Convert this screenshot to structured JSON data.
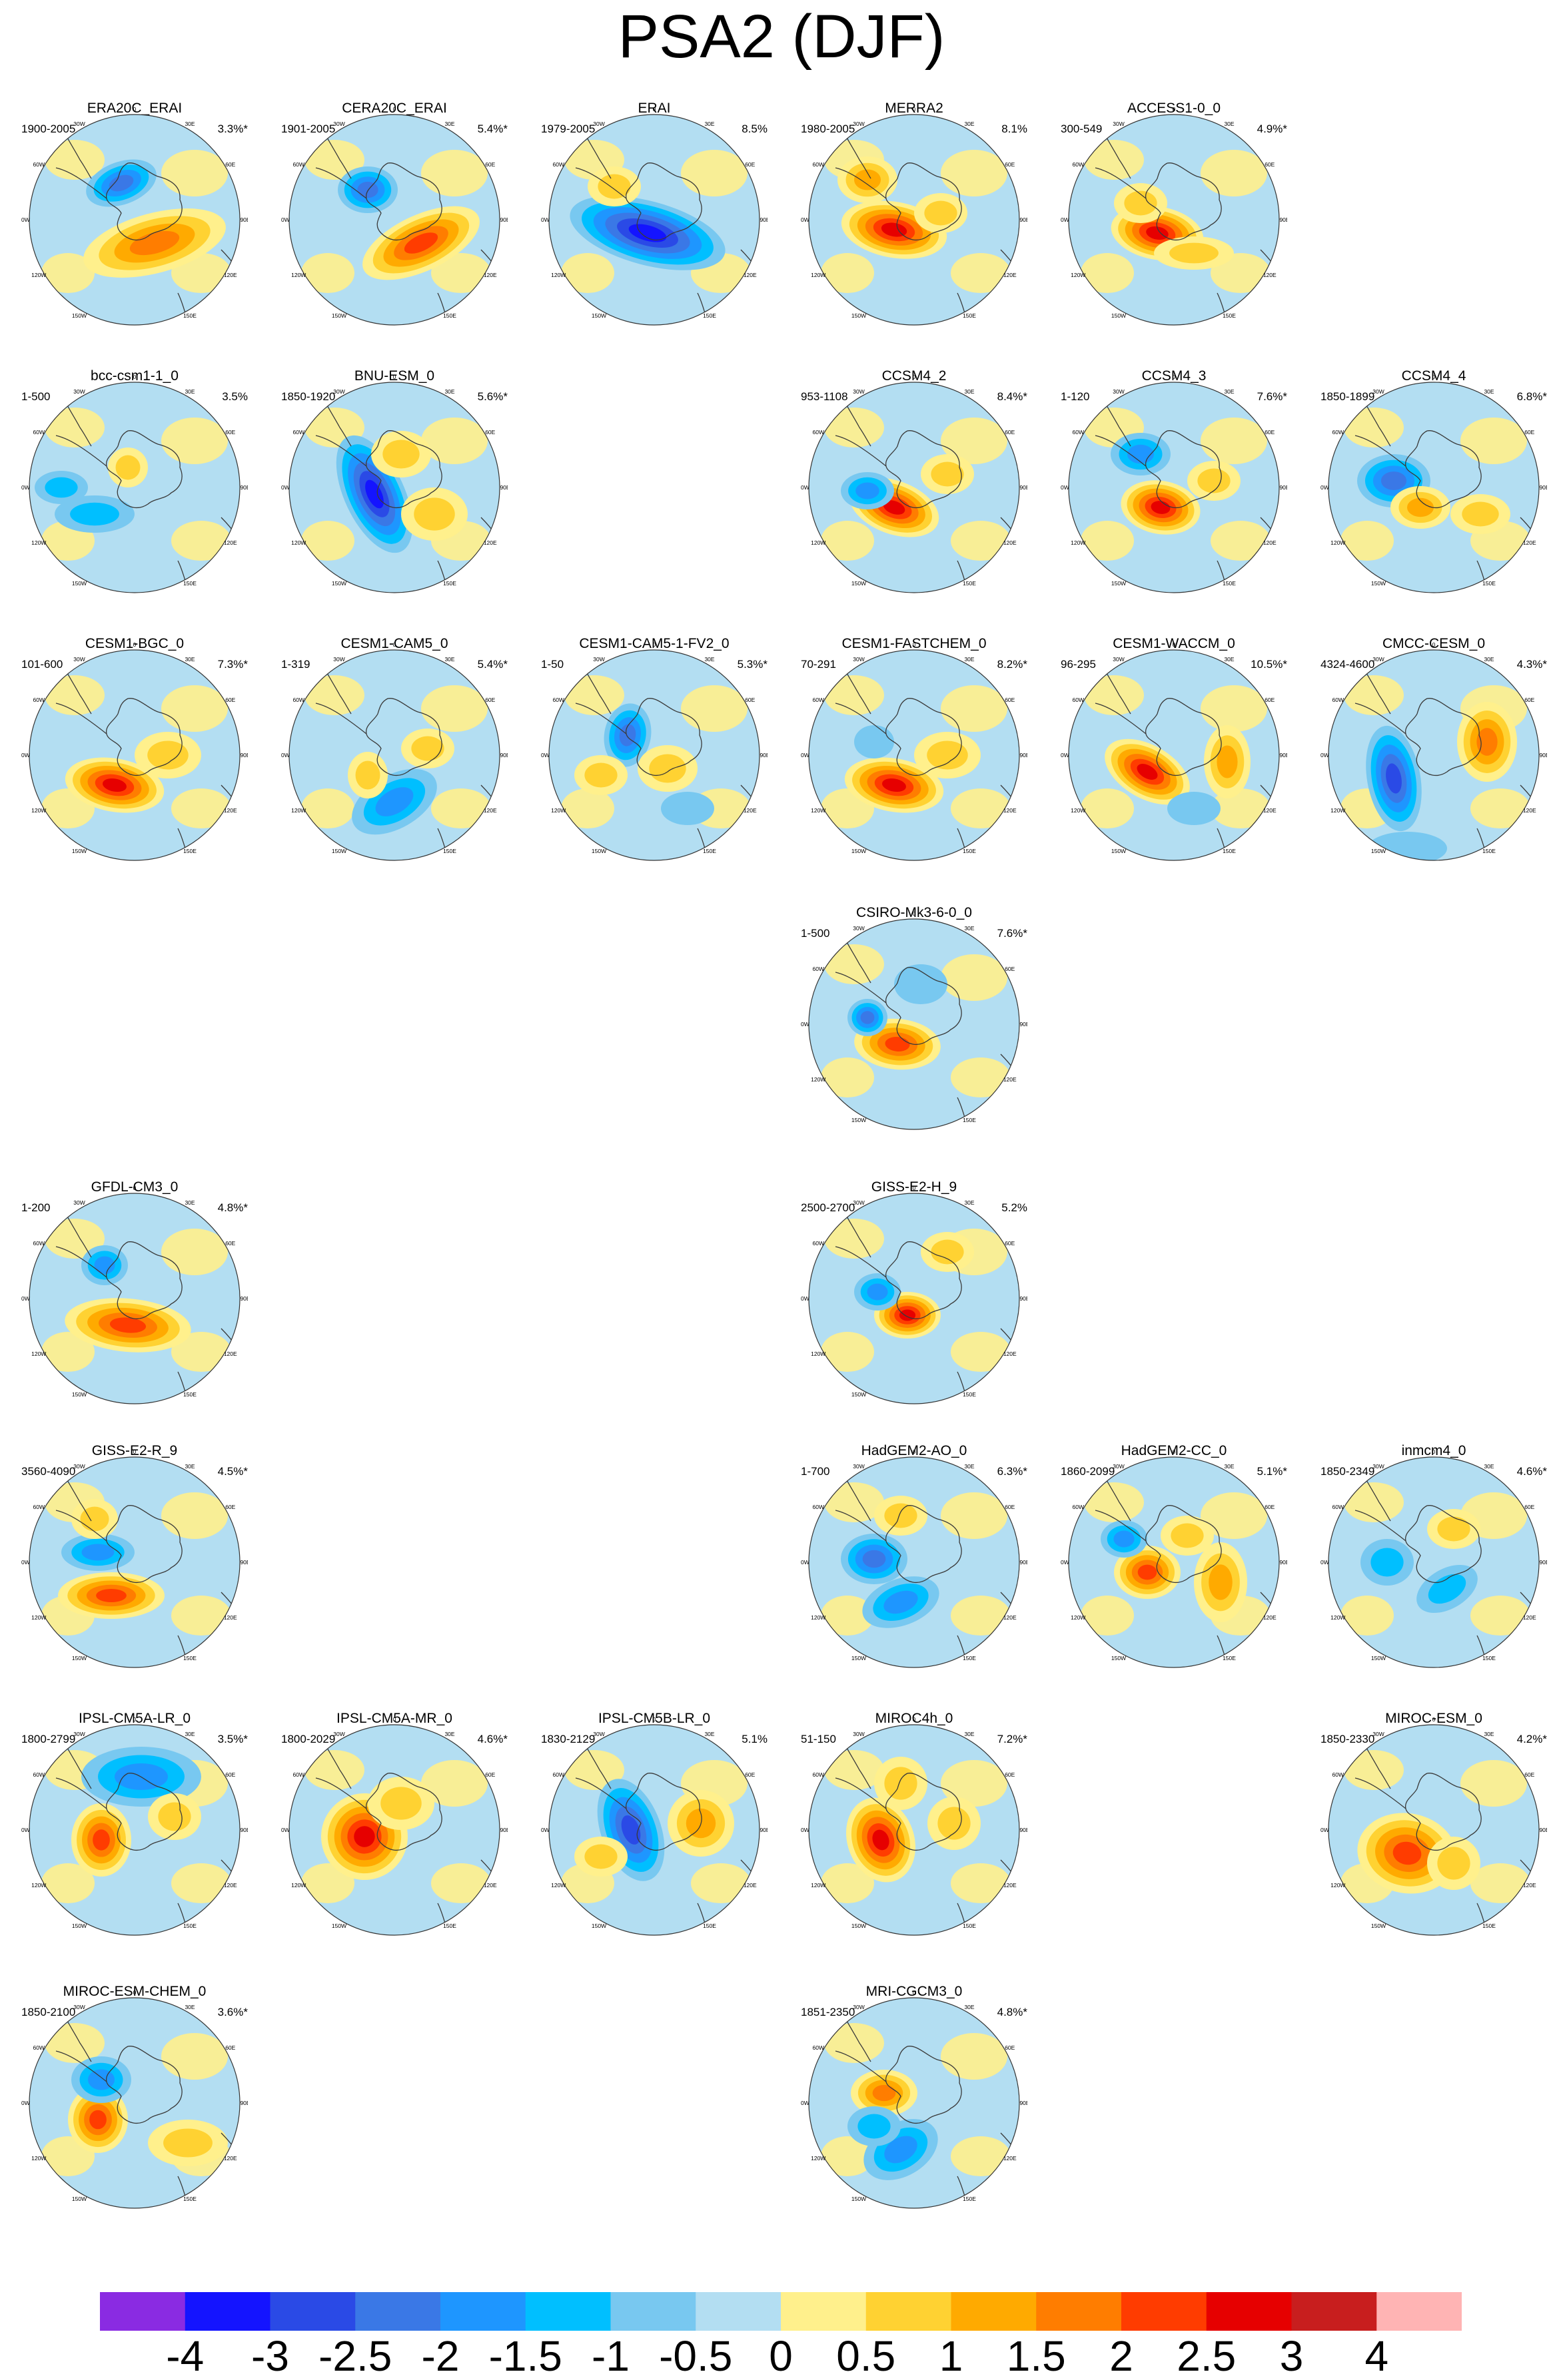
{
  "title": "PSA2 (DJF)",
  "colors": {
    "background": "#ffffff",
    "ocean_base": "#b3def2",
    "coastline": "#3a3a3a"
  },
  "longitude_labels": [
    "0",
    "30E",
    "60E",
    "90E",
    "120E",
    "150E",
    "180",
    "150W",
    "120W",
    "90W",
    "60W",
    "30W"
  ],
  "panels": [
    {
      "name": "ERA20C_ERAI",
      "years": "1900-2005",
      "pct": "3.3%*"
    },
    {
      "name": "CERA20C_ERAI",
      "years": "1901-2005",
      "pct": "5.4%*"
    },
    {
      "name": "ERAI",
      "years": "1979-2005",
      "pct": "8.5%"
    },
    {
      "name": "MERRA2",
      "years": "1980-2005",
      "pct": "8.1%"
    },
    {
      "name": "ACCESS1-0_0",
      "years": "300-549",
      "pct": "4.9%*"
    },
    {
      "name": "bcc-csm1-1_0",
      "years": "1-500",
      "pct": "3.5%"
    },
    {
      "name": "BNU-ESM_0",
      "years": "1850-1920",
      "pct": "5.6%*"
    },
    {
      "name": "CCSM4_2",
      "years": "953-1108",
      "pct": "8.4%*"
    },
    {
      "name": "CCSM4_3",
      "years": "1-120",
      "pct": "7.6%*"
    },
    {
      "name": "CCSM4_4",
      "years": "1850-1899",
      "pct": "6.8%*"
    },
    {
      "name": "CESM1-BGC_0",
      "years": "101-600",
      "pct": "7.3%*"
    },
    {
      "name": "CESM1-CAM5_0",
      "years": "1-319",
      "pct": "5.4%*"
    },
    {
      "name": "CESM1-CAM5-1-FV2_0",
      "years": "1-50",
      "pct": "5.3%*"
    },
    {
      "name": "CESM1-FASTCHEM_0",
      "years": "70-291",
      "pct": "8.2%*"
    },
    {
      "name": "CESM1-WACCM_0",
      "years": "96-295",
      "pct": "10.5%*"
    },
    {
      "name": "CMCC-CESM_0",
      "years": "4324-4600",
      "pct": "4.3%*"
    },
    {
      "name": "CSIRO-Mk3-6-0_0",
      "years": "1-500",
      "pct": "7.6%*"
    },
    {
      "name": "GFDL-CM3_0",
      "years": "1-200",
      "pct": "4.8%*"
    },
    {
      "name": "GISS-E2-H_9",
      "years": "2500-2700",
      "pct": "5.2%"
    },
    {
      "name": "GISS-E2-R_9",
      "years": "3560-4090",
      "pct": "4.5%*"
    },
    {
      "name": "HadGEM2-AO_0",
      "years": "1-700",
      "pct": "6.3%*"
    },
    {
      "name": "HadGEM2-CC_0",
      "years": "1860-2099",
      "pct": "5.1%*"
    },
    {
      "name": "inmcm4_0",
      "years": "1850-2349",
      "pct": "4.6%*"
    },
    {
      "name": "IPSL-CM5A-LR_0",
      "years": "1800-2799",
      "pct": "3.5%*"
    },
    {
      "name": "IPSL-CM5A-MR_0",
      "years": "1800-2029",
      "pct": "4.6%*"
    },
    {
      "name": "IPSL-CM5B-LR_0",
      "years": "1830-2129",
      "pct": "5.1%"
    },
    {
      "name": "MIROC4h_0",
      "years": "51-150",
      "pct": "7.2%*"
    },
    {
      "name": "MIROC-ESM_0",
      "years": "1850-2330",
      "pct": "4.2%*"
    },
    {
      "name": "MIROC-ESM-CHEM_0",
      "years": "1850-2100",
      "pct": "3.6%*"
    },
    {
      "name": "MRI-CGCM3_0",
      "years": "1851-2350",
      "pct": "4.8%*"
    }
  ],
  "colorbar": {
    "labels": [
      "-4",
      "-3",
      "-2.5",
      "-2",
      "-1.5",
      "-1",
      "-0.5",
      "0",
      "0.5",
      "1",
      "1.5",
      "2",
      "2.5",
      "3",
      "4"
    ],
    "colors": [
      "#8a2be2",
      "#1414ff",
      "#2a4ae6",
      "#3a78e6",
      "#1e96ff",
      "#00bfff",
      "#78c8f0",
      "#b3def2",
      "#fff08c",
      "#ffd232",
      "#ffaa00",
      "#ff7d00",
      "#ff3c00",
      "#e60000",
      "#c81e1e",
      "#ffb4b4"
    ]
  }
}
